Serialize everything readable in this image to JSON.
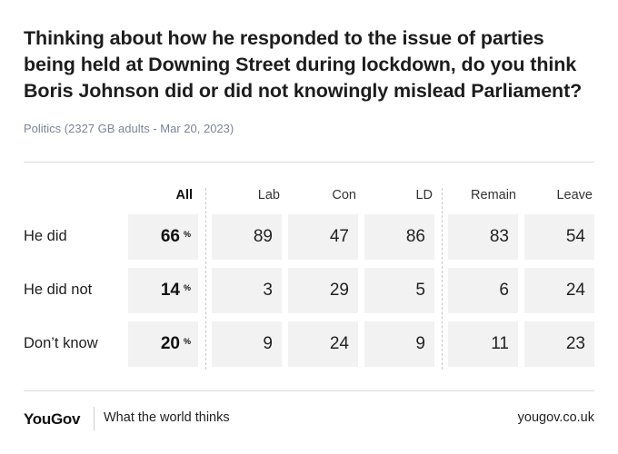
{
  "title": "Thinking about how he responded to the issue of parties being held at Downing Street during lockdown, do you think Boris Johnson did or did not knowingly mislead Parliament?",
  "subtitle": "Politics (2327 GB adults - Mar 20, 2023)",
  "chart_data": {
    "type": "table",
    "columns": [
      "All",
      "Lab",
      "Con",
      "LD",
      "Remain",
      "Leave"
    ],
    "rows": [
      {
        "label": "He did",
        "values": [
          66,
          89,
          47,
          86,
          83,
          54
        ]
      },
      {
        "label": "He did not",
        "values": [
          14,
          3,
          29,
          5,
          6,
          24
        ]
      },
      {
        "label": "Don’t know",
        "values": [
          20,
          9,
          24,
          9,
          11,
          23
        ]
      }
    ],
    "all_suffix": "%"
  },
  "footer": {
    "logo": "YouGov",
    "tagline": "What the world thinks",
    "url": "yougov.co.uk"
  },
  "colors": {
    "cell_background": "#f2f2f2",
    "subtitle": "#7a8599"
  }
}
